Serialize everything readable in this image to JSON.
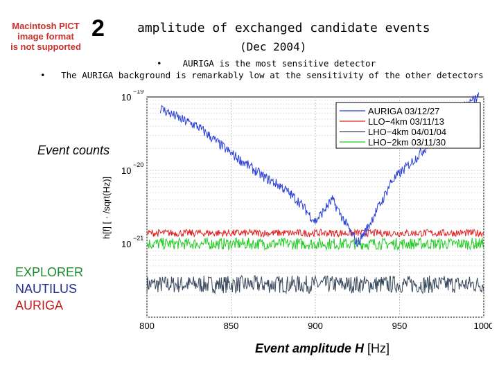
{
  "placeholder_image": {
    "lines": [
      "Macintosh PICT",
      "image format",
      "is not supported"
    ],
    "color": "#c8302c"
  },
  "slide_number": "2",
  "title": "amplitude of exchanged candidate events",
  "subtitle": "(Dec 2004)",
  "bullets": [
    "AURIGA is the most sensitive detector",
    "The AURIGA background is remarkably low at the sensitivity of the other detectors"
  ],
  "overlay": {
    "event_counts": "Event counts",
    "detectors": [
      {
        "name": "EXPLORER",
        "color": "#1e8c2c"
      },
      {
        "name": "NAUTILUS",
        "color": "#1f2f8c"
      },
      {
        "name": "AURIGA",
        "color": "#c21d1d"
      }
    ],
    "x_title_var": "Event amplitude H",
    "x_title_unit": "[Hz]"
  },
  "chart_data": {
    "type": "line",
    "ylabel": "h[f] [ · /sqrt(Hz)]",
    "xlim": [
      800,
      1000
    ],
    "ylim": [
      1e-22,
      1e-19
    ],
    "y_scale": "log",
    "x_ticks": [
      "800",
      "850",
      "900",
      "950",
      "1000"
    ],
    "y_ticks": [
      {
        "base": "10",
        "exp": "−19"
      },
      {
        "base": "10",
        "exp": "−20"
      },
      {
        "base": "10",
        "exp": "−21"
      }
    ],
    "grid": true,
    "legend_position": "top-right",
    "series": [
      {
        "name": "AURIGA 03/12/27",
        "color": "#2a3fd6",
        "x": [
          808,
          820,
          830,
          850,
          870,
          880,
          890,
          900,
          910,
          915,
          925,
          932,
          935,
          940,
          945,
          960,
          975,
          990,
          997
        ],
        "y": [
          7e-20,
          5e-20,
          4e-20,
          1.7e-20,
          8e-21,
          6e-21,
          3.8e-21,
          2e-21,
          4e-21,
          2.5e-21,
          1e-21,
          1.8e-21,
          2.5e-21,
          4e-21,
          7e-21,
          1.5e-20,
          3.5e-20,
          8e-20,
          1e-19
        ]
      },
      {
        "name": "LLO−4km 03/11/13",
        "color": "#e02020",
        "x": [
          800,
          850,
          900,
          950,
          1000
        ],
        "y": [
          1.4e-21,
          1.4e-21,
          1.4e-21,
          1.4e-21,
          1.4e-21
        ]
      },
      {
        "name": "LHO−4km 04/01/04",
        "color": "#37475a",
        "x": [
          800,
          850,
          900,
          950,
          1000
        ],
        "y": [
          2.8e-22,
          2.8e-22,
          2.8e-22,
          2.8e-22,
          2.8e-22
        ]
      },
      {
        "name": "LHO−2km 03/11/30",
        "color": "#22cc22",
        "x": [
          800,
          850,
          900,
          950,
          1000
        ],
        "y": [
          1e-21,
          1e-21,
          1e-21,
          1e-21,
          1e-21
        ]
      }
    ]
  }
}
